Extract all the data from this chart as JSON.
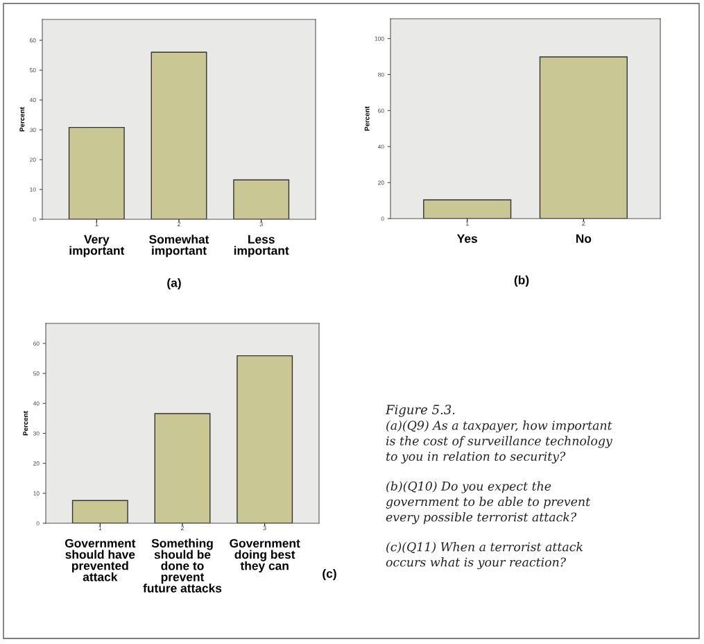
{
  "chart_data": [
    {
      "type": "bar",
      "title": "(a)",
      "ylabel": "Percent",
      "categories": [
        "Very\nimportant",
        "Somewhat\nimportant",
        "Less\nimportant"
      ],
      "values": [
        30.8,
        56.0,
        13.2
      ],
      "color": "#c9c894",
      "ylim": [
        0,
        67
      ],
      "yticks": [
        0,
        10,
        20,
        30,
        40,
        50,
        60
      ],
      "grid": false,
      "legend": false,
      "annotations": [
        "1",
        "2",
        "3"
      ]
    },
    {
      "type": "bar",
      "title": "(b)",
      "ylabel": "Percent",
      "categories": [
        "Yes",
        "No"
      ],
      "values": [
        10.4,
        89.8
      ],
      "color": "#c9c894",
      "ylim": [
        0,
        111
      ],
      "yticks": [
        0,
        20,
        40,
        60,
        80,
        100
      ],
      "grid": false,
      "legend": false,
      "annotations": [
        "1",
        "2"
      ]
    },
    {
      "type": "bar",
      "title": "(c)",
      "ylabel": "Percent",
      "categories": [
        "Government\nshould have\nprevented\nattack",
        "Something\nshould be\ndone to\nprevent\nfuture attacks",
        "Government\ndoing best\nthey can"
      ],
      "values": [
        7.6,
        36.6,
        55.9
      ],
      "color": "#c9c894",
      "ylim": [
        0,
        66.7
      ],
      "yticks": [
        0,
        10,
        20,
        30,
        40,
        50,
        60
      ],
      "grid": false,
      "legend": false,
      "annotations": [
        "1",
        "2",
        "3"
      ]
    },
    {
      "type": "other",
      "title": "Figure 5.3.",
      "annotations": [
        "(a)(Q9) As a taxpayer, how important\nis the cost of surveillance technology\nto you in relation to security?",
        "(b)(Q10) Do you expect the\ngovernment to be able to prevent\nevery possible terrorist attack?",
        "(c)(Q11) When a terrorist attack\noccurs what is your reaction?"
      ]
    }
  ]
}
